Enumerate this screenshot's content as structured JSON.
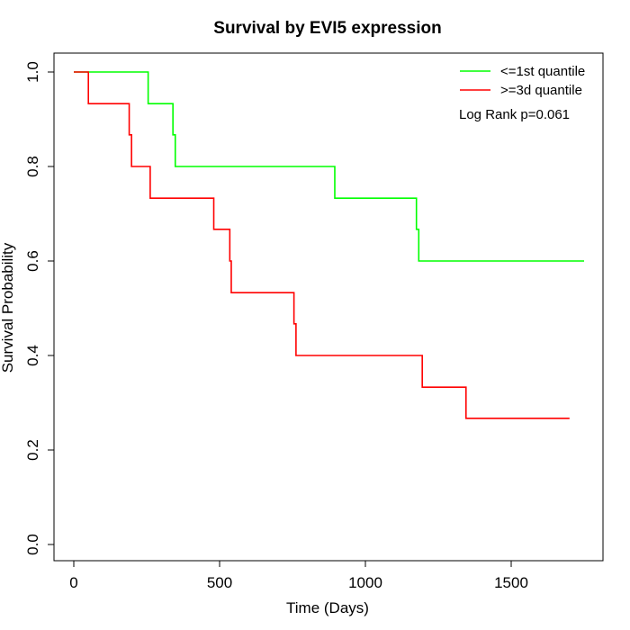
{
  "chart_data": {
    "type": "line",
    "subtype": "step",
    "title": "Survival by EVI5 expression",
    "xlabel": "Time (Days)",
    "ylabel": "Survival Probability",
    "xlim": [
      0,
      1750
    ],
    "ylim": [
      0,
      1
    ],
    "x_ticks": [
      0,
      500,
      1000,
      1500
    ],
    "x_tick_labels": [
      "0",
      "500",
      "1000",
      "1500"
    ],
    "y_ticks": [
      0,
      0.2,
      0.4,
      0.6,
      0.8,
      1.0
    ],
    "y_tick_labels": [
      "0.0",
      "0.2",
      "0.4",
      "0.6",
      "0.8",
      "1.0"
    ],
    "grid": false,
    "legend_position": "top-right",
    "annotation": "Log Rank p=0.061",
    "series": [
      {
        "name": "<=1st quantile",
        "color": "#00ff00",
        "x": [
          0,
          255,
          340,
          348,
          895,
          1175,
          1183,
          1750
        ],
        "y": [
          1.0,
          0.933,
          0.867,
          0.8,
          0.733,
          0.667,
          0.6,
          0.6
        ]
      },
      {
        "name": ">=3d quantile",
        "color": "#ff0000",
        "x": [
          0,
          50,
          190,
          198,
          262,
          480,
          535,
          540,
          755,
          762,
          1195,
          1345,
          1700
        ],
        "y": [
          1.0,
          0.933,
          0.867,
          0.8,
          0.733,
          0.667,
          0.6,
          0.533,
          0.467,
          0.4,
          0.333,
          0.267,
          0.267
        ]
      }
    ]
  }
}
